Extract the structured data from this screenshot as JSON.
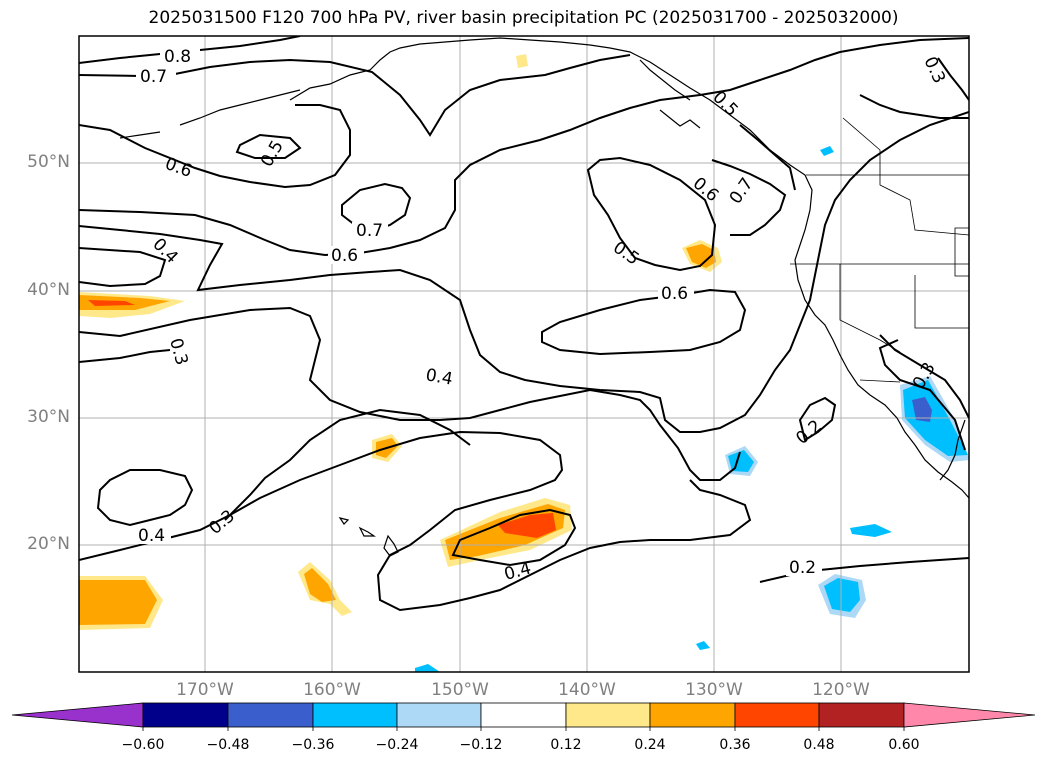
{
  "title": "2025031500 F120 700 hPa PV, river basin precipitation PC (2025031700 - 2025032000)",
  "lat_labels": [
    "50°N",
    "40°N",
    "30°N",
    "20°N"
  ],
  "lon_labels": [
    "170°W",
    "160°W",
    "150°W",
    "140°W",
    "130°W",
    "120°W"
  ],
  "contour_labels": [
    "0.8",
    "0.7",
    "0.6",
    "0.5",
    "0.7",
    "0.6",
    "0.4",
    "0.3",
    "0.4",
    "0.5",
    "0.6",
    "0.7",
    "0.5",
    "0.6",
    "0.3",
    "0.3",
    "0.2",
    "0.4",
    "0.3",
    "0.4",
    "0.2"
  ],
  "colorbar": {
    "ticks": [
      "−0.60",
      "−0.48",
      "−0.36",
      "−0.24",
      "−0.12",
      "0.12",
      "0.24",
      "0.36",
      "0.48",
      "0.60"
    ],
    "colors": [
      "#9932cc",
      "#00008b",
      "#3a5fcd",
      "#00bfff",
      "#add8f6",
      "#ffffff",
      "#ffe88a",
      "#ffa500",
      "#ff4500",
      "#b22222",
      "#ff88aa"
    ]
  }
}
